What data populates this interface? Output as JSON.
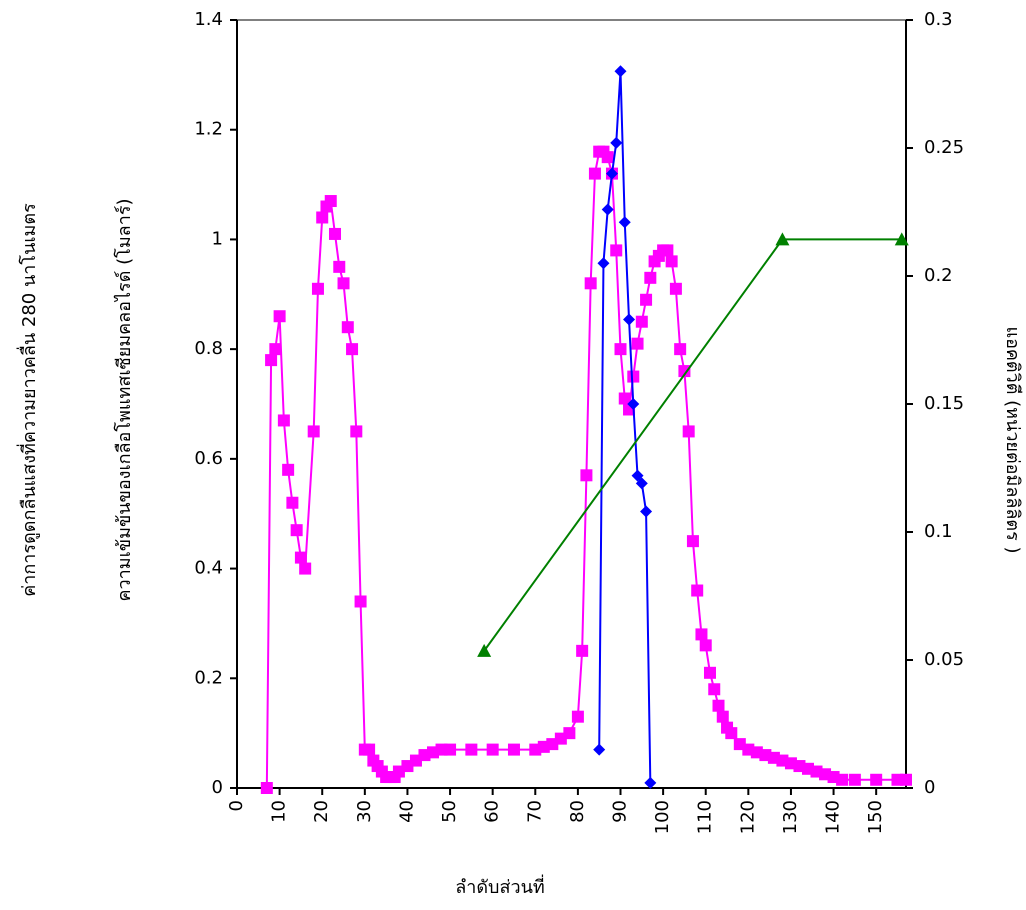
{
  "chart_data": {
    "type": "line",
    "x_label": "ลำดับส่วนที่",
    "y_labels": [
      "ค่าการดูดกลืนแสงที่ความยาวคลื่น 280 นาโนเมตร",
      "ความเข้มข้นของเกลือโพแทสเซียมคลอไรด์ (โมลาร์)"
    ],
    "y2_label": "แอคติวิตี (หน่วยต่อมิลลิลิตร )",
    "xlim": [
      0,
      157
    ],
    "xticks": [
      0,
      10,
      20,
      30,
      40,
      50,
      60,
      70,
      80,
      90,
      100,
      110,
      120,
      130,
      140,
      150
    ],
    "ylim": [
      0,
      1.4
    ],
    "yticks": [
      0,
      0.2,
      0.4,
      0.6,
      0.8,
      1,
      1.2,
      1.4
    ],
    "y2lim": [
      0,
      0.3
    ],
    "y2ticks": [
      0,
      0.05,
      0.1,
      0.15,
      0.2,
      0.25,
      0.3
    ],
    "series": [
      {
        "color": "#ff00ff",
        "marker": "square",
        "axis": "y",
        "x": [
          7,
          8,
          9,
          10,
          11,
          12,
          13,
          14,
          15,
          16,
          18,
          19,
          20,
          21,
          22,
          23,
          24,
          25,
          26,
          27,
          28,
          29,
          30,
          31,
          32,
          33,
          34,
          35,
          36,
          37,
          38,
          40,
          42,
          44,
          46,
          48,
          50,
          55,
          60,
          65,
          70,
          72,
          74,
          76,
          78,
          80,
          81,
          82,
          83,
          84,
          85,
          86,
          87,
          88,
          89,
          90,
          91,
          92,
          93,
          94,
          95,
          96,
          97,
          98,
          99,
          100,
          101,
          102,
          103,
          104,
          105,
          106,
          107,
          108,
          109,
          110,
          111,
          112,
          113,
          114,
          115,
          116,
          118,
          120,
          122,
          124,
          126,
          128,
          130,
          132,
          134,
          136,
          138,
          140,
          142,
          145,
          150,
          155,
          157
        ],
        "values": [
          0,
          0.78,
          0.8,
          0.86,
          0.67,
          0.58,
          0.52,
          0.47,
          0.42,
          0.4,
          0.65,
          0.91,
          1.04,
          1.06,
          1.07,
          1.01,
          0.95,
          0.92,
          0.84,
          0.8,
          0.65,
          0.34,
          0.07,
          0.07,
          0.05,
          0.04,
          0.03,
          0.02,
          0.02,
          0.02,
          0.03,
          0.04,
          0.05,
          0.06,
          0.065,
          0.07,
          0.07,
          0.07,
          0.07,
          0.07,
          0.07,
          0.075,
          0.08,
          0.09,
          0.1,
          0.13,
          0.25,
          0.57,
          0.92,
          1.12,
          1.16,
          1.16,
          1.15,
          1.12,
          0.98,
          0.8,
          0.71,
          0.69,
          0.75,
          0.81,
          0.85,
          0.89,
          0.93,
          0.96,
          0.97,
          0.98,
          0.98,
          0.96,
          0.91,
          0.8,
          0.76,
          0.65,
          0.45,
          0.36,
          0.28,
          0.26,
          0.21,
          0.18,
          0.15,
          0.13,
          0.11,
          0.1,
          0.08,
          0.07,
          0.065,
          0.06,
          0.055,
          0.05,
          0.045,
          0.04,
          0.035,
          0.03,
          0.025,
          0.02,
          0.015,
          0.015,
          0.015,
          0.015,
          0.015
        ]
      },
      {
        "color": "#0000ff",
        "marker": "diamond",
        "axis": "y2",
        "x": [
          85,
          86,
          87,
          88,
          89,
          90,
          91,
          92,
          93,
          94,
          95,
          96,
          97
        ],
        "values": [
          0.015,
          0.205,
          0.226,
          0.24,
          0.252,
          0.28,
          0.221,
          0.183,
          0.15,
          0.122,
          0.119,
          0.108,
          0.002
        ]
      },
      {
        "color": "#008000",
        "marker": "triangle",
        "axis": "y",
        "x": [
          58,
          128,
          156
        ],
        "values": [
          0.25,
          1.0,
          1.0
        ]
      }
    ]
  }
}
